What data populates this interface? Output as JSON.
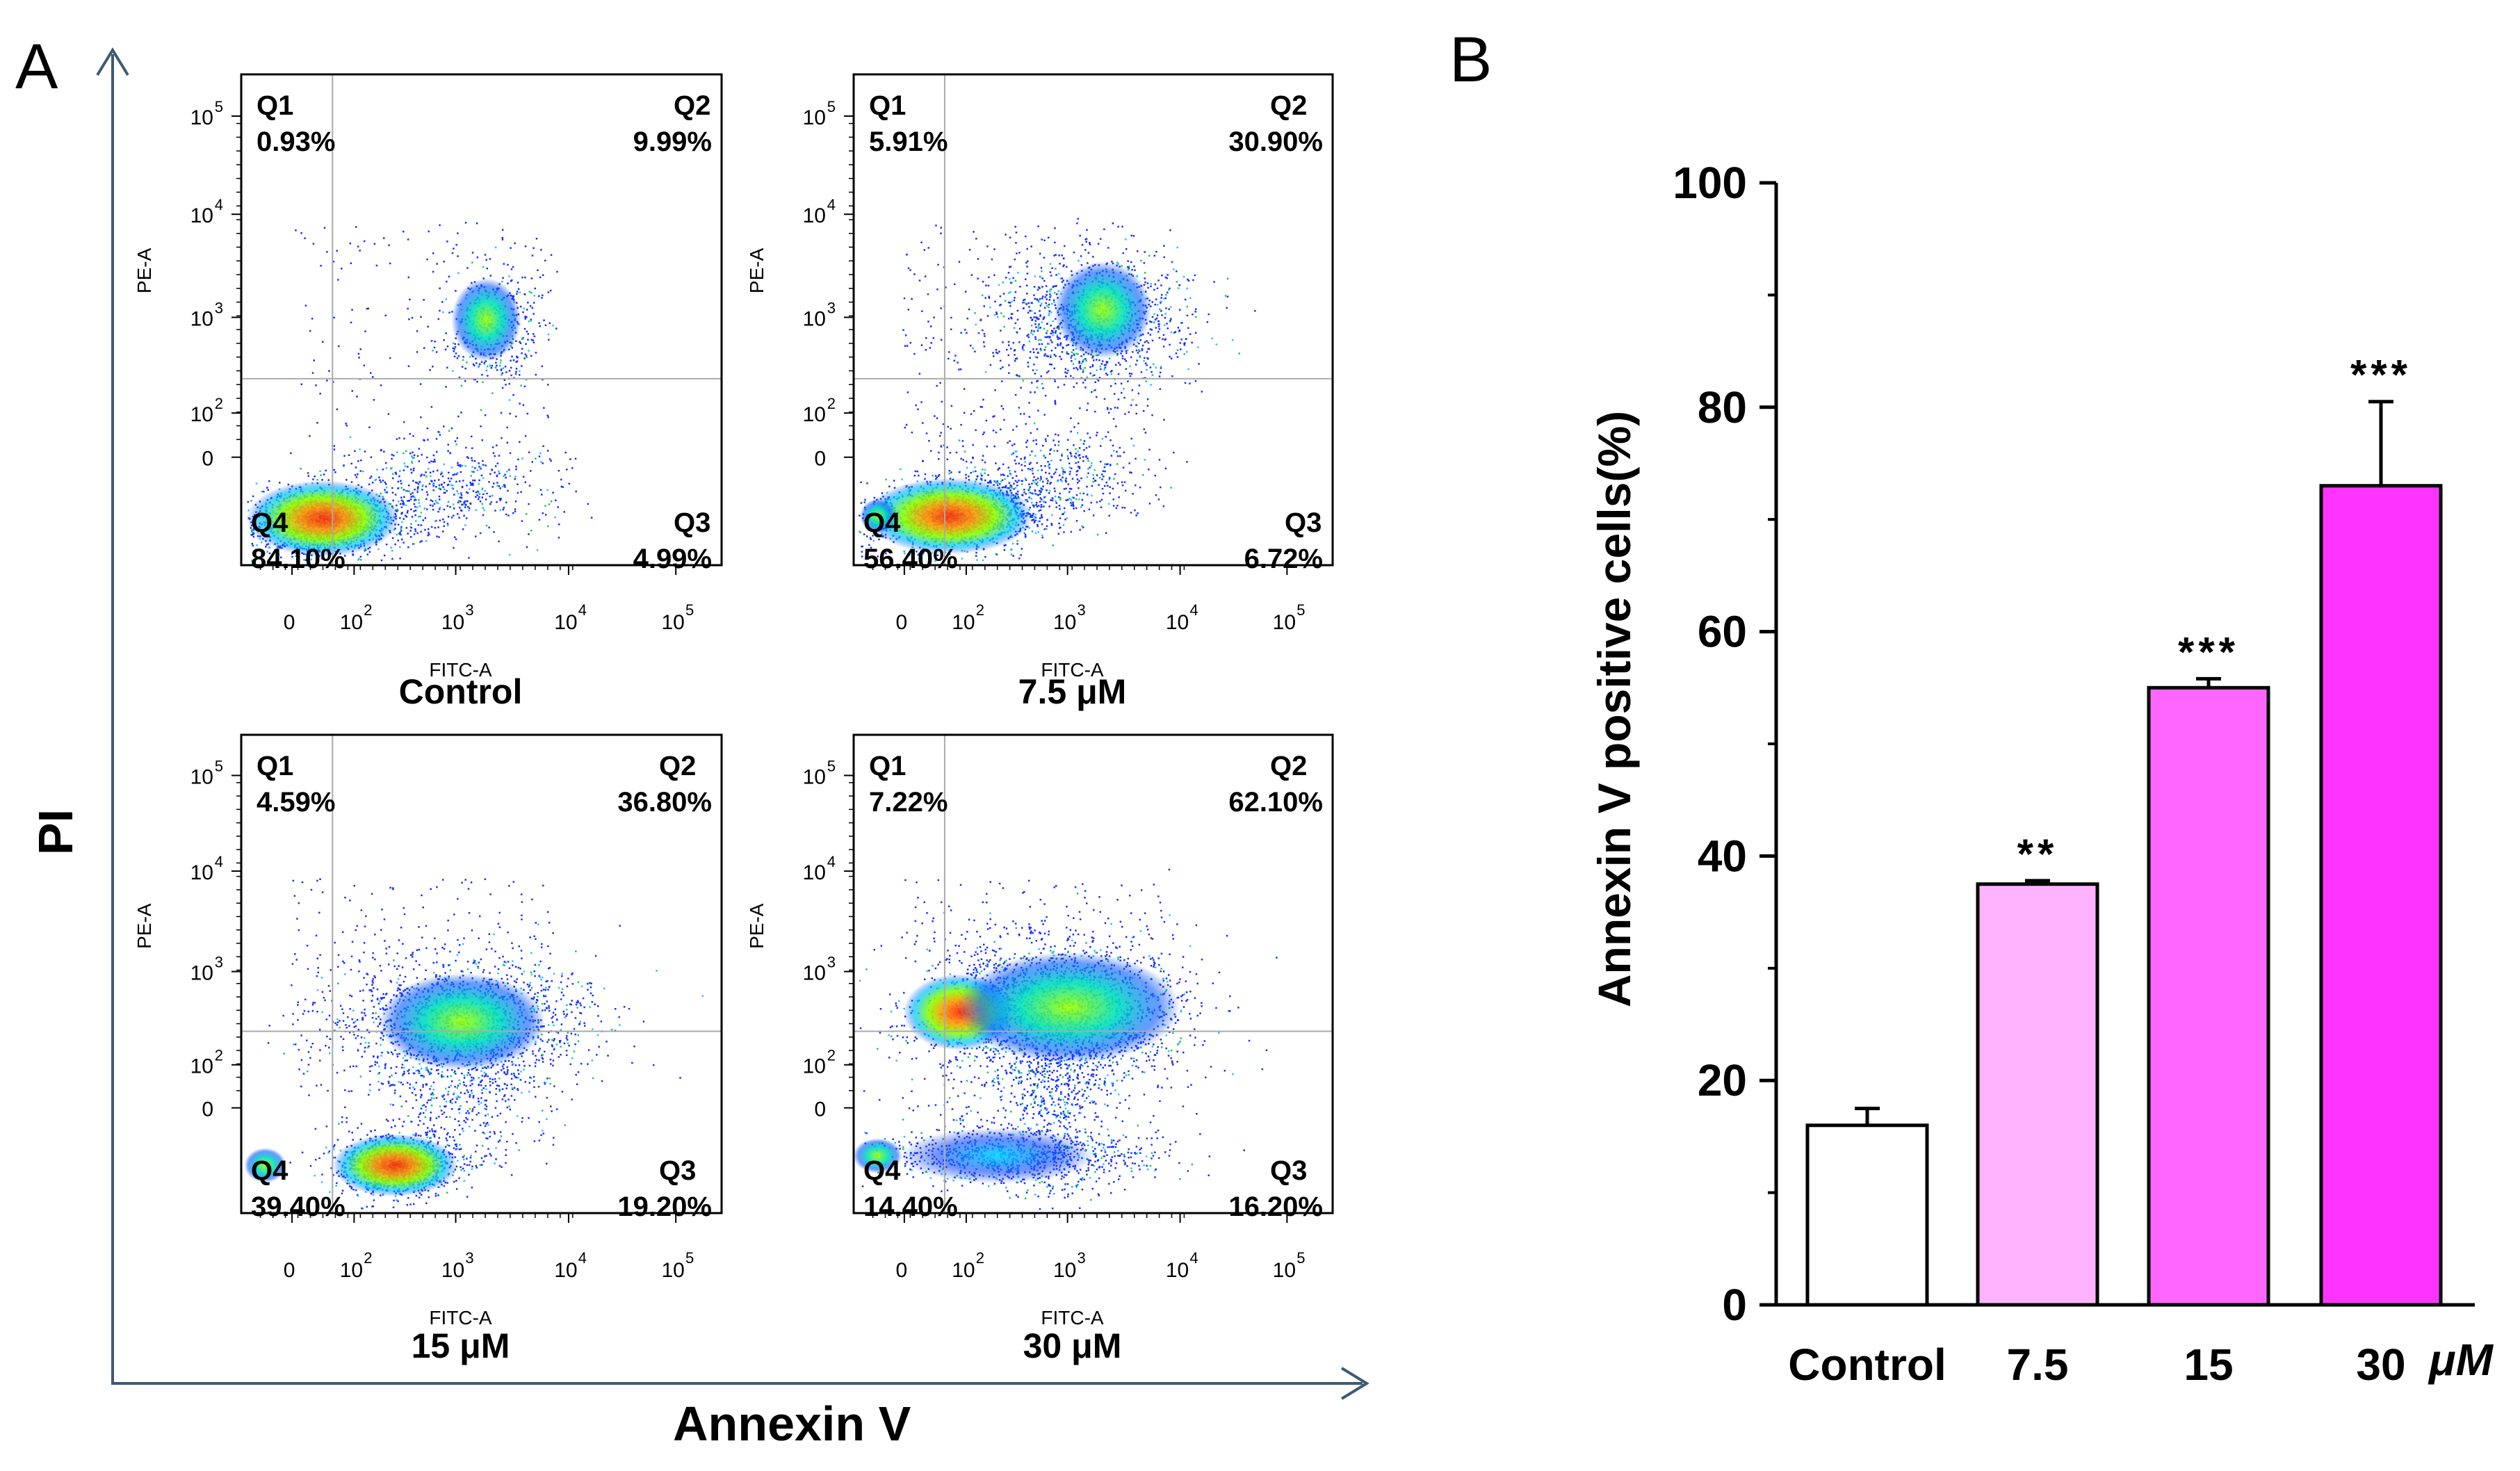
{
  "panels": {
    "a_label": "A",
    "b_label": "B"
  },
  "panel_a": {
    "y_axis_label": "PI",
    "x_axis_label": "Annexin V",
    "plot_x_label": "FITC-A",
    "plot_y_label": "PE-A",
    "y_ticks": [
      "10",
      "10",
      "10",
      "10",
      "0"
    ],
    "y_tick_exps": [
      "5",
      "4",
      "3",
      "2",
      ""
    ],
    "x_ticks": [
      "0",
      "10",
      "10",
      "10",
      "10"
    ],
    "x_tick_exps": [
      "",
      "2",
      "3",
      "4",
      "5"
    ],
    "arrow_color": "#3d5a73"
  },
  "chart_data": [
    {
      "type": "scatter",
      "title": "Control",
      "quadrants": [
        {
          "name": "Q1",
          "value": "0.93%"
        },
        {
          "name": "Q2",
          "value": "9.99%"
        },
        {
          "name": "Q3",
          "value": "4.99%"
        },
        {
          "name": "Q4",
          "value": "84.10%"
        }
      ]
    },
    {
      "type": "scatter",
      "title": "7.5 μM",
      "quadrants": [
        {
          "name": "Q1",
          "value": "5.91%"
        },
        {
          "name": "Q2",
          "value": "30.90%"
        },
        {
          "name": "Q3",
          "value": "6.72%"
        },
        {
          "name": "Q4",
          "value": "56.40%"
        }
      ]
    },
    {
      "type": "scatter",
      "title": "15 μM",
      "quadrants": [
        {
          "name": "Q1",
          "value": "4.59%"
        },
        {
          "name": "Q2",
          "value": "36.80%"
        },
        {
          "name": "Q3",
          "value": "19.20%"
        },
        {
          "name": "Q4",
          "value": "39.40%"
        }
      ]
    },
    {
      "type": "scatter",
      "title": "30 μM",
      "quadrants": [
        {
          "name": "Q1",
          "value": "7.22%"
        },
        {
          "name": "Q2",
          "value": "62.10%"
        },
        {
          "name": "Q3",
          "value": "16.20%"
        },
        {
          "name": "Q4",
          "value": "14.40%"
        }
      ]
    },
    {
      "type": "bar",
      "categories": [
        "Control",
        "7.5",
        "15",
        "30"
      ],
      "x_unit": "μM",
      "values": [
        16,
        37.5,
        55,
        73
      ],
      "errors": [
        1.5,
        0.3,
        0.8,
        7.5
      ],
      "significance": [
        "",
        "**",
        "***",
        "***"
      ],
      "colors": [
        "#ffffff",
        "#ffb3ff",
        "#ff66ff",
        "#ff33ff"
      ],
      "ylabel": "Annexin V positive cells(%)",
      "ylim": [
        0,
        100
      ],
      "yticks": [
        0,
        20,
        40,
        60,
        80,
        100
      ]
    }
  ]
}
